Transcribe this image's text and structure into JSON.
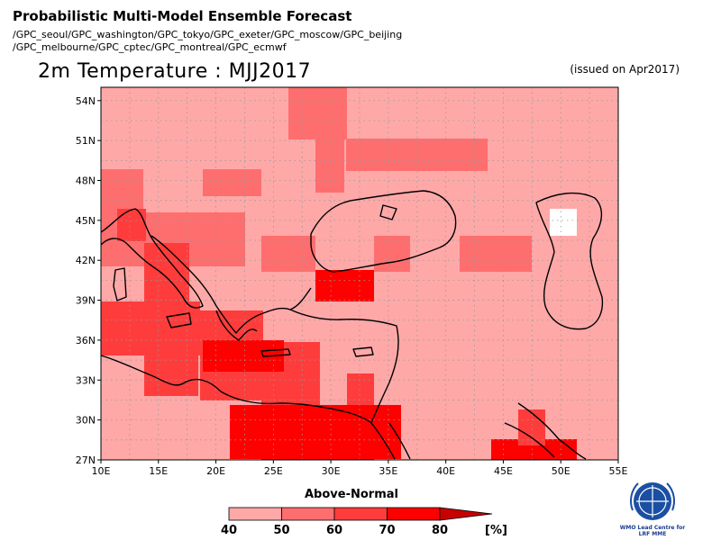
{
  "header": {
    "title": "Probabilistic Multi-Model Ensemble Forecast",
    "members_line1": "/GPC_seoul/GPC_washington/GPC_tokyo/GPC_exeter/GPC_moscow/GPC_beijing",
    "members_line2": "/GPC_melbourne/GPC_cptec/GPC_montreal/GPC_ecmwf",
    "field": "2m Temperature : MJJ2017",
    "issued": "(issued on Apr2017)"
  },
  "map": {
    "lon_range": [
      10,
      55
    ],
    "lat_range": [
      27,
      55
    ],
    "lon_ticks": [
      "10E",
      "15E",
      "20E",
      "25E",
      "30E",
      "35E",
      "40E",
      "45E",
      "50E",
      "55E"
    ],
    "lat_ticks": [
      "54N",
      "51N",
      "48N",
      "45N",
      "42N",
      "39N",
      "36N",
      "33N",
      "30N",
      "27N"
    ],
    "grid_resolution_deg": 2.5
  },
  "colorbar": {
    "title": "Above-Normal",
    "labels": [
      "40",
      "50",
      "60",
      "70",
      "80"
    ],
    "unit": "[%]",
    "colors": [
      "#ffa8a8",
      "#ff6e6e",
      "#ff3c3c",
      "#ff0000",
      "#c80000"
    ]
  },
  "logo": {
    "text_line1": "WMO Lead Centre for",
    "text_line2": "LRF MME"
  }
}
